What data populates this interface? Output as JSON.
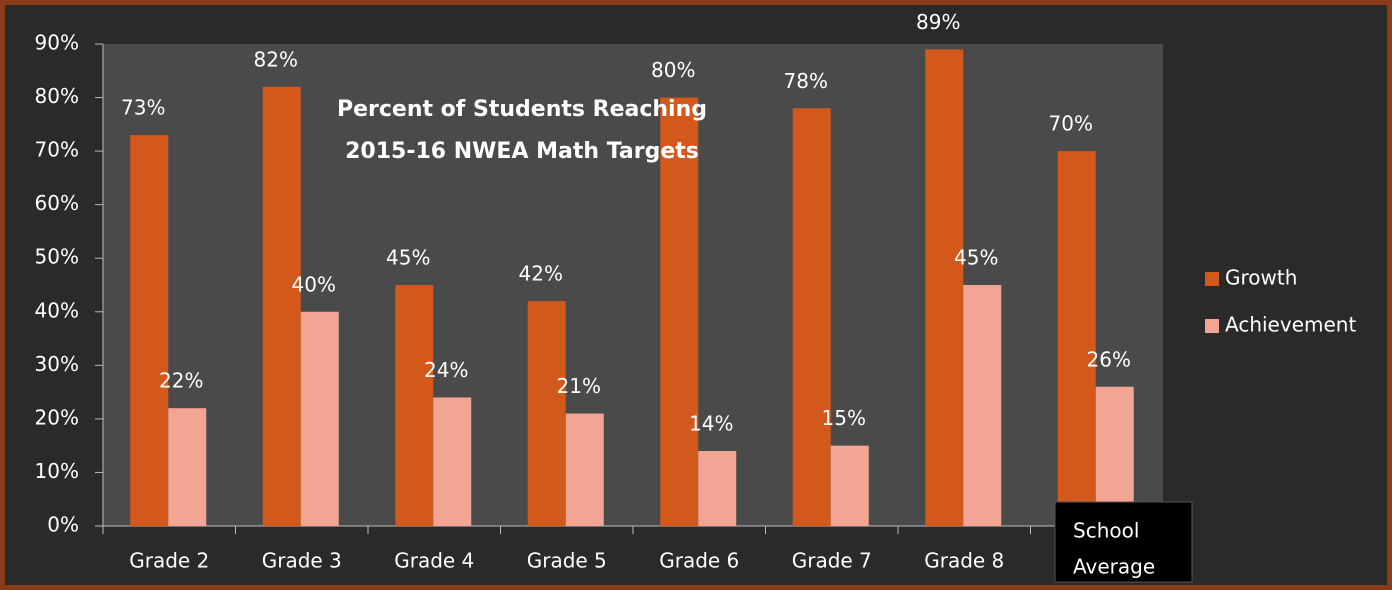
{
  "chart_data": {
    "type": "bar",
    "title": [
      "Percent of Students Reaching",
      "2015-16 NWEA Math Targets"
    ],
    "categories": [
      "Grade 2",
      "Grade 3",
      "Grade 4",
      "Grade 5",
      "Grade 6",
      "Grade 7",
      "Grade 8",
      null
    ],
    "series": [
      {
        "name": "Growth",
        "color": "#d2581c",
        "values": [
          73,
          82,
          45,
          42,
          80,
          78,
          89,
          70
        ],
        "value_labels": [
          "73%",
          "82%",
          "45%",
          "42%",
          "80%",
          "78%",
          "89%",
          "70%"
        ]
      },
      {
        "name": "Achievement",
        "color": "#f2a592",
        "values": [
          22,
          40,
          24,
          21,
          14,
          15,
          45,
          26
        ],
        "value_labels": [
          "22%",
          "40%",
          "24%",
          "21%",
          "14%",
          "15%",
          "45%",
          "26%"
        ]
      }
    ],
    "ylim": [
      0,
      90
    ],
    "yticks": [
      {
        "value": 0,
        "label": "0%"
      },
      {
        "value": 10,
        "label": "10%"
      },
      {
        "value": 20,
        "label": "20%"
      },
      {
        "value": 30,
        "label": "30%"
      },
      {
        "value": 40,
        "label": "40%"
      },
      {
        "value": 50,
        "label": "50%"
      },
      {
        "value": 60,
        "label": "60%"
      },
      {
        "value": 70,
        "label": "70%"
      },
      {
        "value": 80,
        "label": "80%"
      },
      {
        "value": 90,
        "label": "90%"
      }
    ],
    "legend": "right",
    "annotation": [
      "School",
      "Average"
    ]
  }
}
